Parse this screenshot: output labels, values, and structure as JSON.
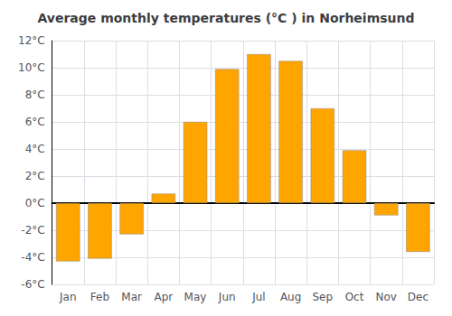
{
  "chart_data": {
    "type": "bar",
    "title": "Average monthly temperatures (°C ) in Norheimsund",
    "categories": [
      "Jan",
      "Feb",
      "Mar",
      "Apr",
      "May",
      "Jun",
      "Jul",
      "Aug",
      "Sep",
      "Oct",
      "Nov",
      "Dec"
    ],
    "values": [
      -4.3,
      -4.1,
      -2.3,
      0.7,
      6.0,
      9.9,
      11.0,
      10.5,
      7.0,
      3.9,
      -0.9,
      -3.6
    ],
    "color": "#FFA500",
    "ylim": [
      -6,
      12
    ],
    "yticks": [
      {
        "value": -6,
        "label": "-6°C"
      },
      {
        "value": -4,
        "label": "-4°C"
      },
      {
        "value": -2,
        "label": "-2°C"
      },
      {
        "value": 0,
        "label": "0°C"
      },
      {
        "value": 2,
        "label": "2°C"
      },
      {
        "value": 4,
        "label": "4°C"
      },
      {
        "value": 6,
        "label": "6°C"
      },
      {
        "value": 8,
        "label": "8°C"
      },
      {
        "value": 10,
        "label": "10°C"
      },
      {
        "value": 12,
        "label": "12°C"
      }
    ],
    "grid": true
  }
}
